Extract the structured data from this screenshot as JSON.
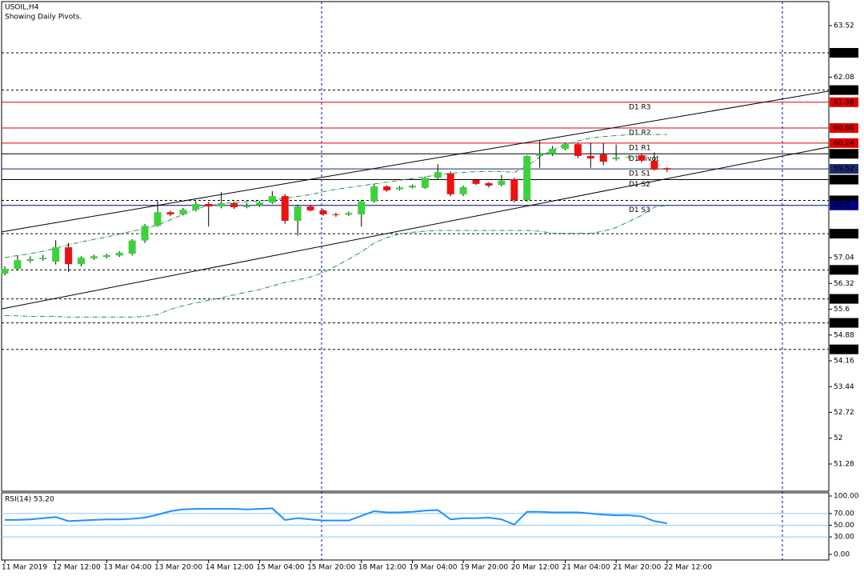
{
  "chart_data": [
    {
      "type": "candlestick",
      "title": "USOIL,H4",
      "subtitle": "Showing Daily Pivots.",
      "categories": [
        "11 Mar 2019",
        null,
        null,
        null,
        "12 Mar 12:00",
        null,
        null,
        null,
        "13 Mar 04:00",
        null,
        null,
        null,
        "13 Mar 20:00",
        null,
        null,
        null,
        "14 Mar 12:00",
        null,
        null,
        null,
        "15 Mar 04:00",
        null,
        null,
        null,
        "15 Mar 20:00",
        null,
        null,
        null,
        "18 Mar 12:00",
        null,
        null,
        null,
        "19 Mar 04:00",
        null,
        null,
        null,
        "19 Mar 20:00",
        null,
        null,
        null,
        "20 Mar 12:00",
        null,
        null,
        null,
        "21 Mar 04:00",
        null,
        null,
        null,
        "21 Mar 20:00",
        null,
        null,
        null,
        "22 Mar 12:00"
      ],
      "open": [
        56.59,
        56.73,
        56.95,
        57.0,
        56.93,
        57.33,
        56.86,
        57.02,
        57.06,
        57.1,
        57.15,
        57.52,
        57.93,
        58.31,
        58.25,
        58.38,
        58.54,
        58.47,
        58.56,
        58.45,
        58.5,
        58.58,
        58.76,
        58.07,
        58.47,
        58.36,
        58.25,
        58.24,
        58.25,
        58.61,
        59.03,
        58.95,
        59.0,
        58.99,
        59.27,
        59.39,
        58.81,
        59.21,
        59.12,
        59.07,
        59.23,
        58.65,
        59.88,
        59.94,
        60.08,
        60.21,
        59.88,
        59.92,
        59.79,
        59.84,
        59.9,
        59.75,
        59.54
      ],
      "high": [
        56.8,
        57.09,
        57.08,
        57.12,
        57.53,
        57.45,
        57.08,
        57.12,
        57.15,
        57.22,
        57.56,
        57.98,
        58.65,
        58.35,
        58.43,
        58.62,
        58.6,
        58.87,
        58.6,
        58.56,
        58.62,
        58.9,
        58.82,
        58.52,
        58.52,
        58.4,
        58.3,
        58.33,
        58.65,
        59.1,
        59.06,
        59.04,
        59.08,
        59.3,
        59.65,
        59.45,
        59.05,
        59.24,
        59.15,
        59.35,
        59.27,
        59.9,
        60.3,
        60.16,
        60.25,
        60.25,
        60.25,
        60.24,
        60.2,
        59.9,
        59.94,
        59.98,
        59.56
      ],
      "low": [
        56.55,
        56.68,
        56.9,
        56.95,
        56.85,
        56.64,
        56.8,
        56.98,
        57.02,
        57.06,
        57.1,
        57.45,
        57.9,
        58.2,
        58.22,
        58.33,
        57.91,
        58.42,
        58.4,
        58.42,
        58.46,
        58.54,
        57.99,
        57.65,
        58.33,
        58.21,
        58.18,
        58.2,
        57.91,
        58.58,
        58.88,
        58.92,
        58.97,
        58.96,
        59.22,
        58.75,
        58.76,
        59.07,
        59.0,
        59.03,
        58.58,
        58.6,
        59.55,
        59.88,
        60.04,
        59.82,
        59.55,
        59.62,
        59.75,
        59.8,
        59.7,
        59.47,
        59.43
      ],
      "close": [
        56.73,
        56.97,
        57.0,
        57.04,
        57.33,
        56.86,
        57.04,
        57.08,
        57.11,
        57.18,
        57.52,
        57.93,
        58.31,
        58.25,
        58.38,
        58.54,
        58.47,
        58.56,
        58.45,
        58.5,
        58.58,
        58.76,
        58.07,
        58.47,
        58.36,
        58.25,
        58.24,
        58.29,
        58.61,
        59.03,
        58.92,
        59.0,
        59.05,
        59.27,
        59.43,
        58.81,
        59.01,
        59.1,
        59.05,
        59.19,
        58.65,
        59.88,
        59.94,
        60.08,
        60.21,
        59.88,
        59.81,
        59.72,
        59.84,
        59.86,
        59.75,
        59.5,
        59.5
      ],
      "up_color": "#3cd23c",
      "down_color": "#ee1111",
      "ylim": [
        50.52,
        64.19
      ],
      "yticks": [
        63.52,
        62.08,
        57.04,
        56.32,
        55.6,
        54.88,
        54.16,
        53.44,
        52.72,
        52.0,
        51.28
      ],
      "levels": [
        62.76,
        61.72,
        58.64,
        57.71,
        56.7,
        55.89,
        55.22,
        54.48
      ],
      "pivots": [
        {
          "name": "D1 R3",
          "value": 61.38,
          "color": "#e00000"
        },
        {
          "name": "D1 R2",
          "value": 60.66,
          "color": "#e00000"
        },
        {
          "name": "D1 R1",
          "value": 60.24,
          "color": "#e00000"
        },
        {
          "name": "D1 Pivot",
          "value": 59.94,
          "color": "#000000"
        },
        {
          "name": "D1 S1",
          "value": 59.52,
          "color": "#1a2a6c"
        },
        {
          "name": "D1 S2",
          "value": 59.22,
          "color": "#000000"
        },
        {
          "name": "D1 S3",
          "value": 58.5,
          "color": "#000080"
        }
      ],
      "trendlines": [
        {
          "start": 57.76,
          "end": 61.69
        },
        {
          "start": 55.61,
          "end": 60.13
        }
      ],
      "bands": [
        [
          57.04,
          57.1,
          57.15,
          57.22,
          57.3,
          57.4,
          57.48,
          57.55,
          57.62,
          57.7,
          57.78,
          57.85,
          57.95,
          58.1,
          58.25,
          58.4,
          58.5,
          58.55,
          58.58,
          58.6,
          58.62,
          58.65,
          58.7,
          58.75,
          58.8,
          58.88,
          58.95,
          59.0,
          59.05,
          59.1,
          59.15,
          59.2,
          59.25,
          59.3,
          59.35,
          59.4,
          59.42,
          59.44,
          59.45,
          59.45,
          59.42,
          59.6,
          59.85,
          60.05,
          60.2,
          60.3,
          60.38,
          60.42,
          60.45,
          60.47,
          60.48,
          60.48,
          60.48
        ],
        [
          55.42,
          55.42,
          55.4,
          55.4,
          55.4,
          55.38,
          55.38,
          55.38,
          55.38,
          55.38,
          55.38,
          55.4,
          55.45,
          55.6,
          55.7,
          55.78,
          55.85,
          55.92,
          56.0,
          56.08,
          56.15,
          56.25,
          56.35,
          56.42,
          56.5,
          56.62,
          56.8,
          57.0,
          57.2,
          57.45,
          57.6,
          57.7,
          57.75,
          57.78,
          57.8,
          57.8,
          57.8,
          57.8,
          57.8,
          57.8,
          57.8,
          57.8,
          57.78,
          57.72,
          57.72,
          57.72,
          57.72,
          57.78,
          57.88,
          58.05,
          58.22,
          58.45,
          58.5
        ]
      ],
      "band_color": "#2e8b57"
    },
    {
      "type": "line",
      "title": "RSI(14) 53.20",
      "values": [
        59,
        59,
        60,
        62,
        64,
        57,
        58,
        59,
        60,
        60,
        61,
        63,
        68,
        74,
        77,
        78,
        78,
        78,
        78,
        77,
        78,
        79,
        59,
        62,
        60,
        58,
        58,
        58,
        66,
        74,
        72,
        72,
        73,
        75,
        76,
        60,
        62,
        62,
        63,
        60,
        51,
        73,
        73,
        72,
        72,
        72,
        70,
        68,
        67,
        67,
        65,
        57,
        53.2
      ],
      "color": "#1e90ff",
      "ylim": [
        -9.6,
        105.5
      ],
      "yticks": [
        {
          "value": 100,
          "label": "100.00"
        },
        {
          "value": 70,
          "label": "70.00"
        },
        {
          "value": 50,
          "label": "50.00"
        },
        {
          "value": 30,
          "label": "30.00"
        },
        {
          "value": 0,
          "label": "0.00"
        }
      ],
      "levels": [
        70,
        50,
        30
      ],
      "level_color": "#87cefa"
    }
  ]
}
